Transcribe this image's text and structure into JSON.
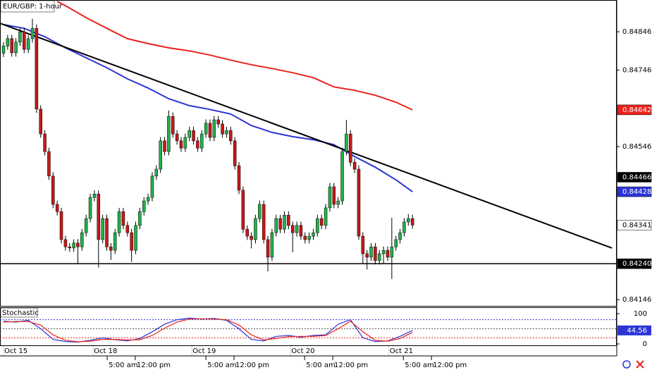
{
  "chart_data": {
    "type": "candlestick",
    "title": "EUR/GBP: 1-hour",
    "up_color": "#22b14c",
    "down_color": "#c81818",
    "xlim": [
      -0.85,
      148.46
    ],
    "ylim": [
      0.84128,
      0.84929
    ],
    "yticks": [
      0.84846,
      0.84746,
      0.84546,
      0.84146
    ],
    "xticks": [
      {
        "value": 0,
        "label": "Oct 15"
      },
      {
        "value": 21.7,
        "label": "Oct 18"
      },
      {
        "value": 45.6,
        "label": "Oct 19"
      },
      {
        "value": 69.5,
        "label": "Oct 20"
      },
      {
        "value": 93.3,
        "label": "Oct 21"
      }
    ],
    "xticks2": [
      {
        "value": 25.1,
        "label": "5:00 am"
      },
      {
        "value": 31.9,
        "label": "12:00 pm"
      },
      {
        "value": 49,
        "label": "5:00 am"
      },
      {
        "value": 55.8,
        "label": "12:00 pm"
      },
      {
        "value": 72.9,
        "label": "5:00 am"
      },
      {
        "value": 79.7,
        "label": "12:00 pm"
      },
      {
        "value": 96.8,
        "label": "5:00 am"
      },
      {
        "value": 103.6,
        "label": "12:00 pm"
      }
    ],
    "x": [
      0,
      1,
      2,
      3,
      4,
      5,
      6,
      7,
      8,
      9,
      10,
      11,
      12,
      13,
      14,
      15,
      16,
      17,
      18,
      19,
      20,
      21,
      22,
      23,
      24,
      25,
      26,
      27,
      28,
      29,
      30,
      31,
      32,
      33,
      34,
      35,
      36,
      37,
      38,
      39,
      40,
      41,
      42,
      43,
      44,
      45,
      46,
      47,
      48,
      49,
      50,
      51,
      52,
      53,
      54,
      55,
      56,
      57,
      58,
      59,
      60,
      61,
      62,
      63,
      64,
      65,
      66,
      67,
      68,
      69,
      70,
      71,
      72,
      73,
      74,
      75,
      76,
      77,
      78,
      79,
      80,
      81,
      82,
      83,
      84,
      85,
      86,
      87,
      88,
      89,
      90,
      91,
      92,
      93,
      94,
      95,
      96,
      97,
      98,
      99
    ],
    "open": [
      0.8479,
      0.84809,
      0.84828,
      0.84791,
      0.84819,
      0.84846,
      0.848,
      0.84828,
      0.84855,
      0.84644,
      0.84579,
      0.84533,
      0.84469,
      0.84395,
      0.84376,
      0.84303,
      0.84284,
      0.84281,
      0.84294,
      0.84284,
      0.84321,
      0.84358,
      0.84413,
      0.84422,
      0.84303,
      0.84358,
      0.84284,
      0.84275,
      0.84321,
      0.84376,
      0.8434,
      0.84321,
      0.84275,
      0.8434,
      0.84376,
      0.84404,
      0.84413,
      0.84469,
      0.84487,
      0.84561,
      0.84533,
      0.84625,
      0.84579,
      0.84561,
      0.84542,
      0.8457,
      0.84588,
      0.84561,
      0.84542,
      0.84579,
      0.84607,
      0.8457,
      0.84616,
      0.84605,
      0.84579,
      0.84588,
      0.84561,
      0.84496,
      0.84432,
      0.8433,
      0.84312,
      0.84303,
      0.84358,
      0.84395,
      0.84303,
      0.84257,
      0.84321,
      0.84358,
      0.8433,
      0.84367,
      0.8434,
      0.84321,
      0.8434,
      0.84312,
      0.84303,
      0.84312,
      0.84321,
      0.84358,
      0.8434,
      0.84386,
      0.84441,
      0.84395,
      0.84404,
      0.84533,
      0.84579,
      0.84505,
      0.84487,
      0.84312,
      0.84266,
      0.84257,
      0.84284,
      0.84248,
      0.84266,
      0.84275,
      0.84257,
      0.84284,
      0.84303,
      0.84321,
      0.84349,
      0.84358
    ],
    "high": [
      0.84819,
      0.84838,
      0.84838,
      0.84829,
      0.84856,
      0.84856,
      0.84838,
      0.8488,
      0.84865,
      0.84654,
      0.84589,
      0.84543,
      0.84479,
      0.84405,
      0.84386,
      0.84313,
      0.84294,
      0.84304,
      0.84304,
      0.84331,
      0.84368,
      0.84423,
      0.84432,
      0.84432,
      0.84368,
      0.84368,
      0.84294,
      0.84331,
      0.84386,
      0.84386,
      0.8435,
      0.84331,
      0.8435,
      0.84386,
      0.84414,
      0.84423,
      0.84479,
      0.84497,
      0.84571,
      0.84571,
      0.8464,
      0.84635,
      0.84589,
      0.84571,
      0.8458,
      0.84598,
      0.84598,
      0.84571,
      0.84589,
      0.84617,
      0.84617,
      0.84626,
      0.84626,
      0.84615,
      0.84598,
      0.84598,
      0.84571,
      0.84506,
      0.84442,
      0.8434,
      0.84322,
      0.84368,
      0.84405,
      0.84405,
      0.84313,
      0.84331,
      0.84368,
      0.84368,
      0.84377,
      0.84377,
      0.8435,
      0.8435,
      0.8435,
      0.84322,
      0.84322,
      0.84331,
      0.84368,
      0.84368,
      0.84396,
      0.84451,
      0.84451,
      0.84414,
      0.84543,
      0.84616,
      0.84589,
      0.84515,
      0.84497,
      0.84322,
      0.84276,
      0.84294,
      0.84294,
      0.84276,
      0.84285,
      0.84285,
      0.8436,
      0.84313,
      0.84331,
      0.84359,
      0.8437,
      0.84368
    ],
    "low": [
      0.8478,
      0.84799,
      0.84781,
      0.84781,
      0.84809,
      0.8479,
      0.8479,
      0.84818,
      0.84634,
      0.84569,
      0.84523,
      0.84459,
      0.84385,
      0.84366,
      0.84293,
      0.84274,
      0.84271,
      0.84271,
      0.8424,
      0.84274,
      0.84311,
      0.84348,
      0.84403,
      0.8423,
      0.84293,
      0.84274,
      0.8425,
      0.84265,
      0.84311,
      0.8433,
      0.84311,
      0.84245,
      0.84265,
      0.8433,
      0.84366,
      0.84394,
      0.84403,
      0.84459,
      0.84477,
      0.84523,
      0.84523,
      0.84569,
      0.84551,
      0.84532,
      0.84532,
      0.8456,
      0.84551,
      0.84532,
      0.84532,
      0.84569,
      0.8456,
      0.8456,
      0.84595,
      0.84569,
      0.84569,
      0.84551,
      0.84486,
      0.84422,
      0.8432,
      0.84302,
      0.8428,
      0.84293,
      0.84348,
      0.84293,
      0.8422,
      0.84247,
      0.84311,
      0.8432,
      0.8432,
      0.8433,
      0.8427,
      0.84311,
      0.84302,
      0.84293,
      0.84293,
      0.84302,
      0.84311,
      0.8433,
      0.8433,
      0.84376,
      0.84385,
      0.84385,
      0.84394,
      0.84523,
      0.84495,
      0.84477,
      0.84302,
      0.8424,
      0.84225,
      0.84247,
      0.84238,
      0.84238,
      0.8424,
      0.84247,
      0.842,
      0.84274,
      0.84293,
      0.84311,
      0.84339,
      0.84331
    ],
    "close": [
      0.84809,
      0.84828,
      0.84791,
      0.84819,
      0.84846,
      0.848,
      0.84828,
      0.84855,
      0.84644,
      0.84579,
      0.84533,
      0.84469,
      0.84395,
      0.84376,
      0.84303,
      0.84284,
      0.84281,
      0.84294,
      0.84284,
      0.84321,
      0.84358,
      0.84413,
      0.84422,
      0.84303,
      0.84358,
      0.84284,
      0.84275,
      0.84321,
      0.84376,
      0.8434,
      0.84321,
      0.84275,
      0.8434,
      0.84376,
      0.84404,
      0.84413,
      0.84469,
      0.84487,
      0.84561,
      0.84533,
      0.84625,
      0.84579,
      0.84561,
      0.84542,
      0.8457,
      0.84588,
      0.84561,
      0.84542,
      0.84579,
      0.84607,
      0.8457,
      0.84616,
      0.84605,
      0.84579,
      0.84588,
      0.84561,
      0.84496,
      0.84432,
      0.8433,
      0.84312,
      0.84303,
      0.84358,
      0.84395,
      0.84303,
      0.84257,
      0.84321,
      0.84358,
      0.8433,
      0.84367,
      0.8434,
      0.84321,
      0.8434,
      0.84312,
      0.84303,
      0.84312,
      0.84321,
      0.84358,
      0.8434,
      0.84386,
      0.84441,
      0.84395,
      0.84404,
      0.84533,
      0.84579,
      0.84505,
      0.84487,
      0.84312,
      0.84266,
      0.84257,
      0.84284,
      0.84248,
      0.84266,
      0.84275,
      0.84257,
      0.84284,
      0.84303,
      0.84321,
      0.84349,
      0.84358,
      0.84341
    ],
    "lines": [
      {
        "color": "#e8231c",
        "x": [
          13,
          15,
          20,
          25,
          30,
          35,
          40,
          45,
          50,
          55,
          60,
          65,
          70,
          75,
          80,
          85,
          90,
          95,
          99
        ],
        "values": [
          0.84925,
          0.84914,
          0.84883,
          0.84855,
          0.84828,
          0.84815,
          0.84804,
          0.84796,
          0.84785,
          0.84772,
          0.8476,
          0.8475,
          0.84739,
          0.84726,
          0.84702,
          0.84693,
          0.8468,
          0.84662,
          0.84642
        ]
      },
      {
        "color": "#2b35d6",
        "x": [
          0,
          5,
          10,
          15,
          20,
          25,
          30,
          35,
          40,
          45,
          50,
          55,
          60,
          65,
          70,
          75,
          80,
          85,
          90,
          95,
          99
        ],
        "values": [
          0.84865,
          0.84855,
          0.84833,
          0.84804,
          0.84778,
          0.84752,
          0.84723,
          0.84699,
          0.84671,
          0.84653,
          0.84643,
          0.84631,
          0.84601,
          0.84583,
          0.84572,
          0.84564,
          0.84551,
          0.8452,
          0.84492,
          0.84459,
          0.84428
        ]
      },
      {
        "color": "#000000",
        "x": [
          -0.85,
          147.3
        ],
        "values": [
          0.84868,
          0.84281
        ]
      }
    ],
    "hline": {
      "value": 0.8424,
      "color": "#000000"
    },
    "price_labels": [
      {
        "value": 0.84642,
        "color": "#e8231c",
        "text_color": "#ffffff"
      },
      {
        "value": 0.84466,
        "color": "#000000",
        "text_color": "#ffffff"
      },
      {
        "value": 0.84428,
        "color": "#2b35d6",
        "text_color": "#ffffff"
      },
      {
        "value": 0.84341,
        "color": "#ffffff",
        "text_color": "#000000"
      },
      {
        "value": 0.8424,
        "label": "0.84240",
        "color": "#000000",
        "text_color": "#ffffff"
      }
    ],
    "stochastic": {
      "title": "Stochastic",
      "ylim": [
        0,
        100
      ],
      "yticks": [
        100,
        0
      ],
      "levels": [
        {
          "value": 80,
          "color": "#2b35d6"
        },
        {
          "value": 50,
          "color": "#555555"
        },
        {
          "value": 20,
          "color": "#e8231c"
        }
      ],
      "series": [
        {
          "color": "#2b35d6",
          "x": [
            0,
            3,
            6,
            9,
            12,
            15,
            18,
            21,
            24,
            27,
            30,
            33,
            36,
            39,
            42,
            45,
            48,
            51,
            54,
            57,
            60,
            63,
            66,
            69,
            72,
            75,
            78,
            81,
            84,
            87,
            90,
            93,
            96,
            99
          ],
          "values": [
            75,
            72,
            78,
            50,
            15,
            8,
            6,
            12,
            20,
            14,
            10,
            18,
            40,
            65,
            80,
            85,
            82,
            84,
            78,
            50,
            15,
            10,
            25,
            28,
            22,
            28,
            30,
            65,
            80,
            20,
            8,
            10,
            25,
            44.56
          ]
        },
        {
          "color": "#e8231c",
          "x": [
            0,
            3,
            6,
            9,
            12,
            15,
            18,
            21,
            24,
            27,
            30,
            33,
            36,
            39,
            42,
            45,
            48,
            51,
            54,
            57,
            60,
            63,
            66,
            69,
            72,
            75,
            78,
            81,
            84,
            87,
            90,
            93,
            96,
            99
          ],
          "values": [
            72,
            74,
            74,
            62,
            30,
            12,
            7,
            9,
            15,
            15,
            13,
            14,
            28,
            52,
            72,
            82,
            83,
            82,
            80,
            62,
            30,
            13,
            18,
            24,
            25,
            25,
            28,
            50,
            75,
            40,
            12,
            9,
            18,
            38
          ]
        }
      ],
      "last_label": {
        "value": 44.56,
        "color": "#2b35d6",
        "text_color": "#ffffff"
      }
    }
  }
}
